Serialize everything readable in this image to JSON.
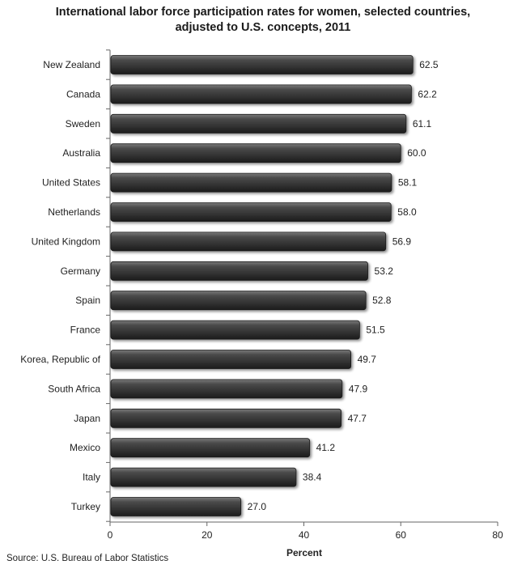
{
  "chart_data": {
    "type": "bar",
    "orientation": "horizontal",
    "title_line1": "International labor force participation rates for women, selected countries,",
    "title_line2": "adjusted to U.S. concepts, 2011",
    "xlabel": "Percent",
    "ylabel": "",
    "xlim": [
      0,
      80
    ],
    "xticks": [
      0,
      20,
      40,
      60,
      80
    ],
    "categories": [
      "New Zealand",
      "Canada",
      "Sweden",
      "Australia",
      "United States",
      "Netherlands",
      "United Kingdom",
      "Germany",
      "Spain",
      "France",
      "Korea, Republic of",
      "South Africa",
      "Japan",
      "Mexico",
      "Italy",
      "Turkey"
    ],
    "values": [
      62.5,
      62.2,
      61.1,
      60.0,
      58.1,
      58.0,
      56.9,
      53.2,
      52.8,
      51.5,
      49.7,
      47.9,
      47.7,
      41.2,
      38.4,
      27.0
    ],
    "value_labels": [
      "62.5",
      "62.2",
      "61.1",
      "60.0",
      "58.1",
      "58.0",
      "56.9",
      "53.2",
      "52.8",
      "51.5",
      "49.7",
      "47.9",
      "47.7",
      "41.2",
      "38.4",
      "27.0"
    ],
    "bar_color": "#3a3a3a",
    "grid": false,
    "legend": "none"
  },
  "source": "Source: U.S. Bureau of Labor Statistics"
}
